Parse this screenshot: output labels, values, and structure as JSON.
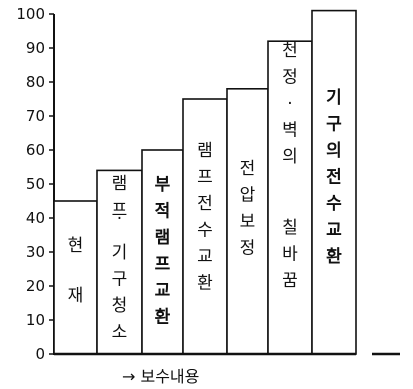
{
  "chart_data": {
    "type": "bar",
    "categories": [
      "현재",
      "램프·기구청소",
      "부적램프교환",
      "램프전수교환",
      "전압보정",
      "천정·벽의 칠바꿈",
      "기구의전수교환"
    ],
    "values": [
      45,
      54,
      60,
      75,
      78,
      92,
      101
    ],
    "xlabel": "→ 보수내용",
    "ylabel": "",
    "ylim": [
      0,
      100
    ],
    "yticks": [
      0,
      10,
      20,
      30,
      40,
      50,
      60,
      70,
      80,
      90,
      100
    ],
    "grid": false,
    "legend": "none"
  }
}
